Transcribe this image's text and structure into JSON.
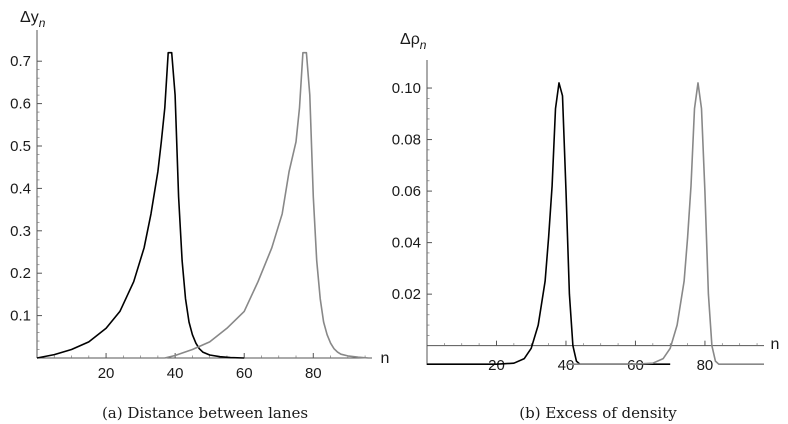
{
  "chart_data": [
    {
      "type": "line",
      "ylabel": "Δy",
      "ylabel_sub": "n",
      "xlabel": "n",
      "caption": "(a)  Distance between lanes",
      "xlim": [
        0,
        97
      ],
      "ylim": [
        0,
        0.75
      ],
      "xticks": [
        20,
        40,
        60,
        80
      ],
      "yticks": [
        0.1,
        0.2,
        0.3,
        0.4,
        0.5,
        0.6,
        0.7
      ],
      "series": [
        {
          "color": "#000000",
          "x": [
            0,
            5,
            10,
            15,
            20,
            24,
            28,
            31,
            33,
            35,
            36,
            37,
            38,
            39,
            40,
            41,
            42,
            43,
            44,
            45,
            46,
            47,
            48,
            50,
            53,
            56,
            60
          ],
          "y": [
            0.0,
            0.008,
            0.02,
            0.038,
            0.07,
            0.11,
            0.18,
            0.26,
            0.34,
            0.44,
            0.51,
            0.59,
            0.72,
            0.72,
            0.62,
            0.38,
            0.23,
            0.14,
            0.085,
            0.055,
            0.035,
            0.022,
            0.014,
            0.007,
            0.003,
            0.001,
            0.0
          ]
        },
        {
          "color": "#888888",
          "x": [
            37,
            40,
            45,
            50,
            55,
            60,
            64,
            68,
            71,
            73,
            75,
            76,
            77,
            78,
            79,
            80,
            81,
            82,
            83,
            84,
            85,
            86,
            87,
            88,
            90,
            93,
            96
          ],
          "y": [
            0.0,
            0.006,
            0.02,
            0.038,
            0.07,
            0.11,
            0.18,
            0.26,
            0.34,
            0.44,
            0.51,
            0.59,
            0.72,
            0.72,
            0.62,
            0.38,
            0.23,
            0.14,
            0.085,
            0.055,
            0.035,
            0.022,
            0.014,
            0.009,
            0.005,
            0.002,
            0.0
          ]
        }
      ]
    },
    {
      "type": "line",
      "ylabel": "Δρ",
      "ylabel_sub": "n",
      "xlabel": "n",
      "caption": "(b)  Excess of density",
      "xlim": [
        0,
        97
      ],
      "ylim": [
        -0.0075,
        0.107
      ],
      "xticks": [
        20,
        40,
        60,
        80
      ],
      "yticks": [
        0.02,
        0.04,
        0.06,
        0.08,
        0.1
      ],
      "ytick_labels": [
        "0.02",
        "0.04",
        "0.06",
        "0.08",
        "0.10"
      ],
      "series": [
        {
          "color": "#000000",
          "x": [
            0,
            20,
            25,
            28,
            30,
            32,
            34,
            35,
            36,
            37,
            38,
            39,
            40,
            41,
            42,
            43,
            44,
            46,
            50,
            60,
            70
          ],
          "y": [
            -0.0072,
            -0.0072,
            -0.0068,
            -0.005,
            -0.001,
            0.008,
            0.025,
            0.042,
            0.062,
            0.092,
            0.102,
            0.097,
            0.06,
            0.02,
            0.0,
            -0.006,
            -0.0072,
            -0.0072,
            -0.0072,
            -0.0072,
            -0.0072
          ]
        },
        {
          "color": "#888888",
          "x": [
            40,
            60,
            65,
            68,
            70,
            72,
            74,
            75,
            76,
            77,
            78,
            79,
            80,
            81,
            82,
            83,
            84,
            86,
            90,
            97
          ],
          "y": [
            -0.0072,
            -0.0072,
            -0.0068,
            -0.005,
            -0.001,
            0.008,
            0.025,
            0.042,
            0.062,
            0.092,
            0.102,
            0.092,
            0.06,
            0.02,
            0.0,
            -0.006,
            -0.0072,
            -0.0072,
            -0.0072,
            -0.0072
          ]
        }
      ]
    }
  ]
}
